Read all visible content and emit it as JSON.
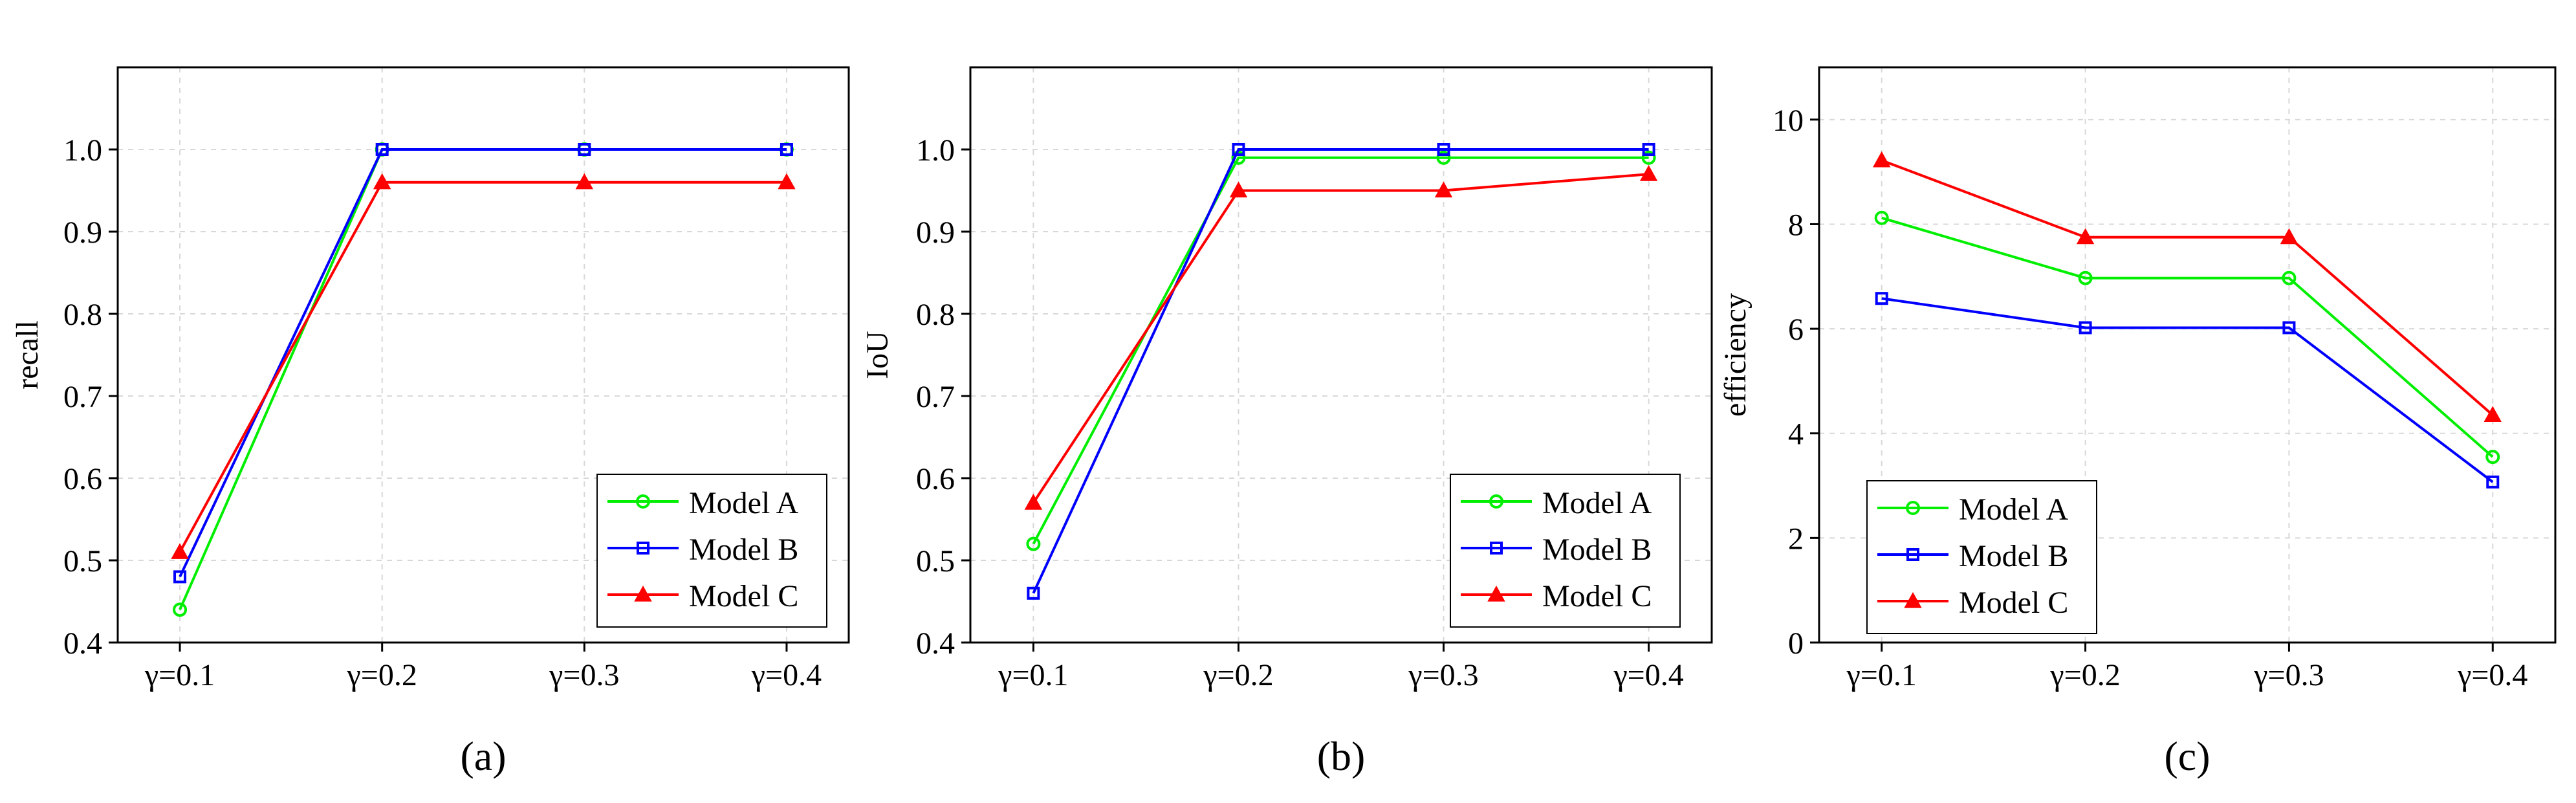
{
  "chart_data": [
    {
      "type": "line",
      "panel_label": "(a)",
      "ylabel": "recall",
      "categories": [
        "γ=0.1",
        "γ=0.2",
        "γ=0.3",
        "γ=0.4"
      ],
      "ylim": [
        0.4,
        1.1
      ],
      "yticks": [
        0.4,
        0.5,
        0.6,
        0.7,
        0.8,
        0.9,
        1.0
      ],
      "ytick_labels": [
        "0.4",
        "0.5",
        "0.6",
        "0.7",
        "0.8",
        "0.9",
        "1.0"
      ],
      "grid": true,
      "legend_position": "bottom-right",
      "series": [
        {
          "name": "Model A",
          "color": "#00ee00",
          "marker": "circle",
          "values": [
            0.44,
            1.0,
            1.0,
            1.0
          ]
        },
        {
          "name": "Model B",
          "color": "#0000ff",
          "marker": "square",
          "values": [
            0.48,
            1.0,
            1.0,
            1.0
          ]
        },
        {
          "name": "Model C",
          "color": "#ff0000",
          "marker": "triangle",
          "values": [
            0.51,
            0.96,
            0.96,
            0.96
          ]
        }
      ]
    },
    {
      "type": "line",
      "panel_label": "(b)",
      "ylabel": "IoU",
      "categories": [
        "γ=0.1",
        "γ=0.2",
        "γ=0.3",
        "γ=0.4"
      ],
      "ylim": [
        0.4,
        1.1
      ],
      "yticks": [
        0.4,
        0.5,
        0.6,
        0.7,
        0.8,
        0.9,
        1.0
      ],
      "ytick_labels": [
        "0.4",
        "0.5",
        "0.6",
        "0.7",
        "0.8",
        "0.9",
        "1.0"
      ],
      "grid": true,
      "legend_position": "bottom-right",
      "series": [
        {
          "name": "Model A",
          "color": "#00ee00",
          "marker": "circle",
          "values": [
            0.52,
            0.99,
            0.99,
            0.99
          ]
        },
        {
          "name": "Model B",
          "color": "#0000ff",
          "marker": "square",
          "values": [
            0.46,
            1.0,
            1.0,
            1.0
          ]
        },
        {
          "name": "Model C",
          "color": "#ff0000",
          "marker": "triangle",
          "values": [
            0.57,
            0.95,
            0.95,
            0.97
          ]
        }
      ]
    },
    {
      "type": "line",
      "panel_label": "(c)",
      "ylabel": "efficiency",
      "categories": [
        "γ=0.1",
        "γ=0.2",
        "γ=0.3",
        "γ=0.4"
      ],
      "ylim": [
        0,
        11
      ],
      "yticks": [
        0,
        2,
        4,
        6,
        8,
        10
      ],
      "ytick_labels": [
        "0",
        "2",
        "4",
        "6",
        "8",
        "10"
      ],
      "grid": true,
      "legend_position": "bottom-left",
      "series": [
        {
          "name": "Model A",
          "color": "#00ee00",
          "marker": "circle",
          "values": [
            8.12,
            6.97,
            6.97,
            3.55
          ]
        },
        {
          "name": "Model B",
          "color": "#0000ff",
          "marker": "square",
          "values": [
            6.58,
            6.02,
            6.02,
            3.07
          ]
        },
        {
          "name": "Model C",
          "color": "#ff0000",
          "marker": "triangle",
          "values": [
            9.22,
            7.75,
            7.75,
            4.35
          ]
        }
      ]
    }
  ]
}
